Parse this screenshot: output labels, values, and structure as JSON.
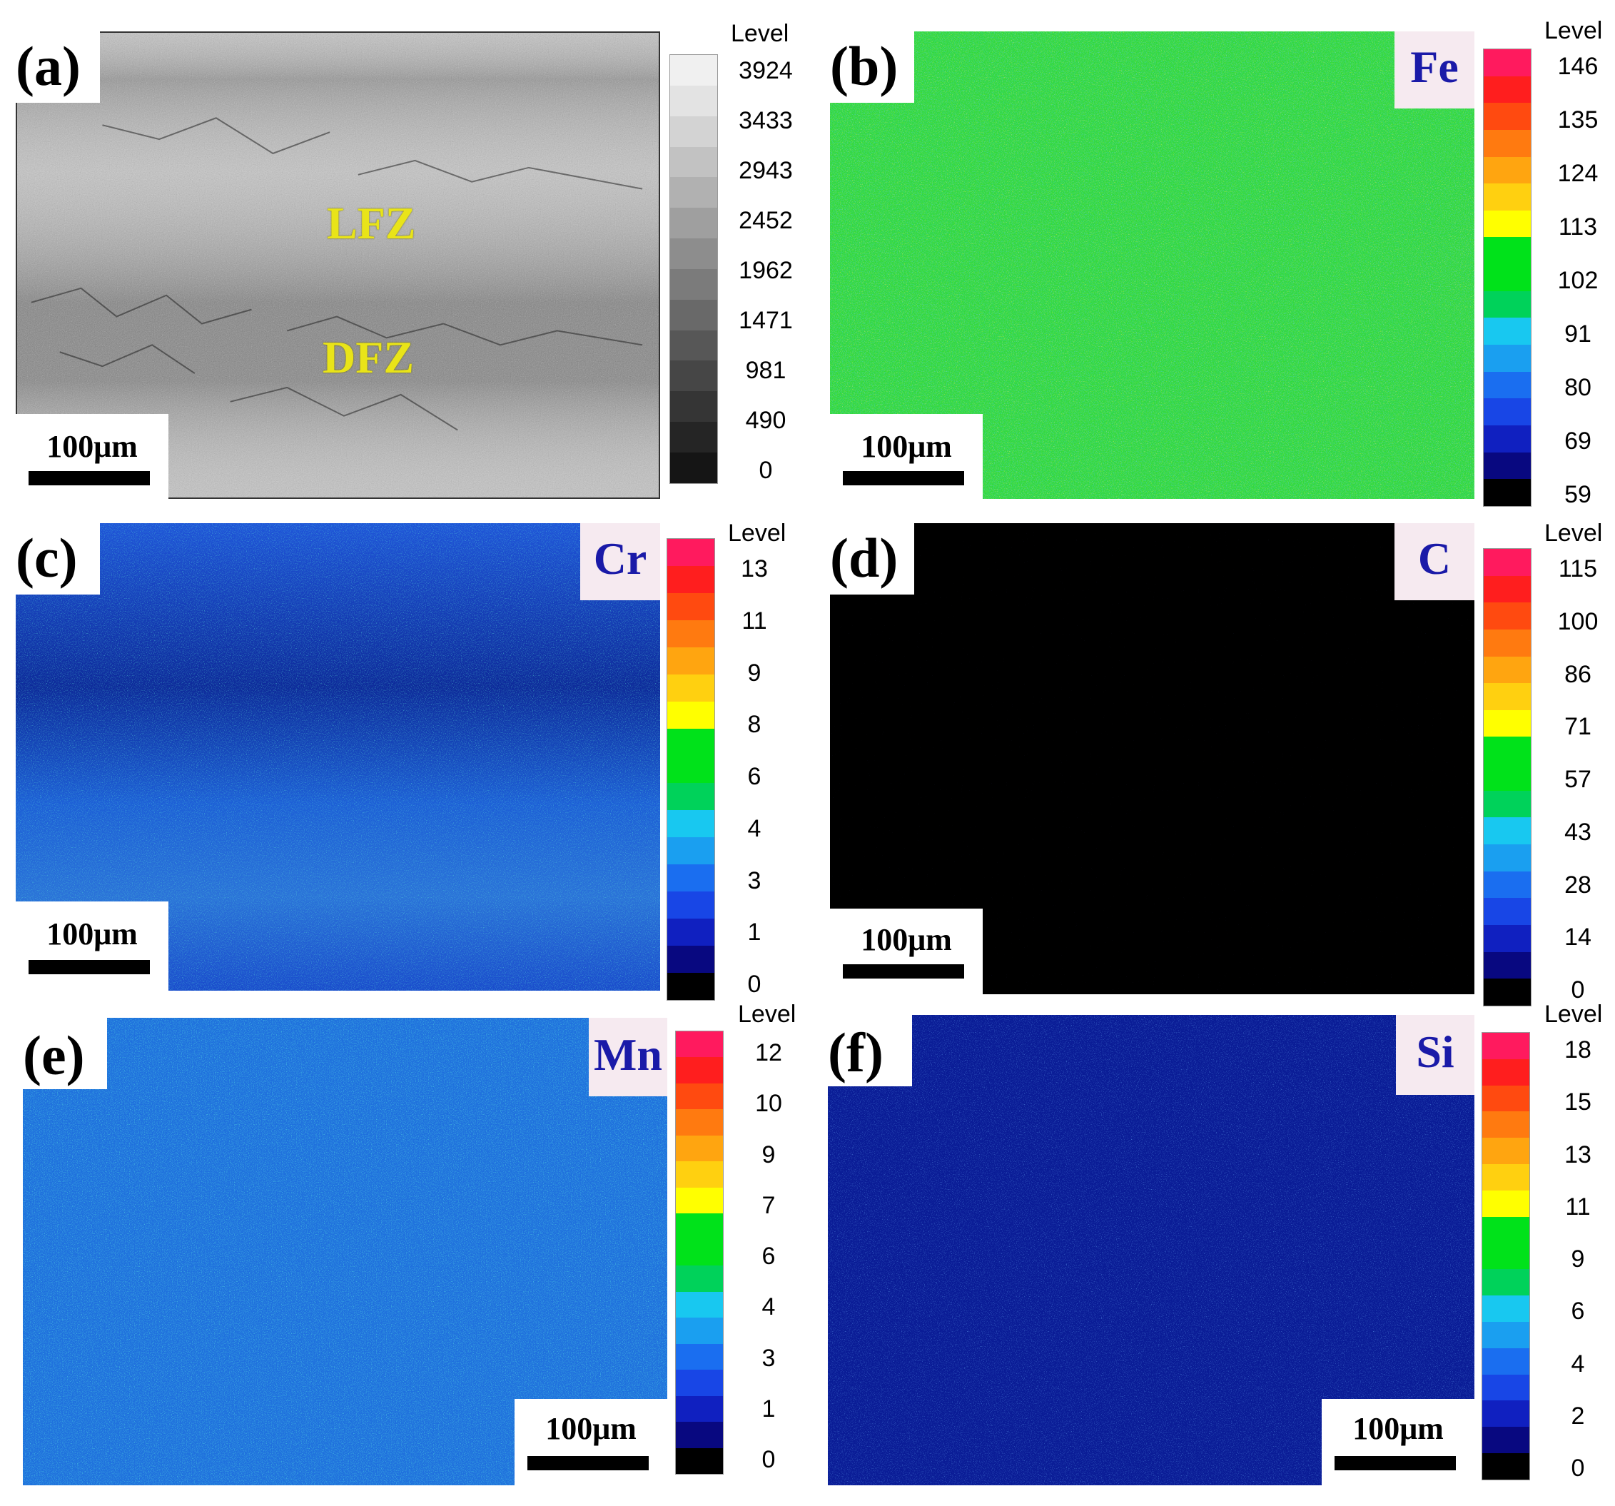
{
  "figure": {
    "panels": [
      {
        "id": "a",
        "label": "(a)",
        "element": "",
        "scale_bar": "100μm",
        "map_style": "grayscale",
        "zones": [
          "LFZ",
          "DFZ"
        ],
        "legend": {
          "title": "Level",
          "ticks": [
            "3924",
            "3433",
            "2943",
            "2452",
            "1962",
            "1471",
            "981",
            "490",
            "0"
          ],
          "colors": [
            "#f0f0f0",
            "#e3e3e3",
            "#d3d3d3",
            "#c2c2c2",
            "#b1b1b1",
            "#9f9f9f",
            "#8d8d8d",
            "#7b7b7b",
            "#696969",
            "#575757",
            "#464646",
            "#353535",
            "#252525",
            "#151515"
          ]
        }
      },
      {
        "id": "b",
        "label": "(b)",
        "element": "Fe",
        "scale_bar": "100μm",
        "map_style": "green-dominant",
        "legend": {
          "title": "Level",
          "ticks": [
            "146",
            "135",
            "124",
            "113",
            "102",
            "91",
            "80",
            "69",
            "59"
          ],
          "colors": [
            "#ff1a5e",
            "#ff1e1e",
            "#ff4a10",
            "#ff7a10",
            "#ffa510",
            "#ffd010",
            "#ffff00",
            "#00e21a",
            "#00e21a",
            "#00d25a",
            "#18c8f0",
            "#1a9ff0",
            "#1a6ef0",
            "#1846e6",
            "#1020c0",
            "#080880",
            "#000000"
          ]
        }
      },
      {
        "id": "c",
        "label": "(c)",
        "element": "Cr",
        "scale_bar": "100μm",
        "map_style": "blue-dominant",
        "legend": {
          "title": "Level",
          "ticks": [
            "13",
            "11",
            "9",
            "8",
            "6",
            "4",
            "3",
            "1",
            "0"
          ],
          "colors": [
            "#ff1a5e",
            "#ff1e1e",
            "#ff4a10",
            "#ff7a10",
            "#ffa510",
            "#ffd010",
            "#ffff00",
            "#00e21a",
            "#00e21a",
            "#00d25a",
            "#18c8f0",
            "#1a9ff0",
            "#1a6ef0",
            "#1846e6",
            "#1020c0",
            "#080880",
            "#000000"
          ]
        }
      },
      {
        "id": "d",
        "label": "(d)",
        "element": "C",
        "scale_bar": "100μm",
        "map_style": "black-sparse",
        "legend": {
          "title": "Level",
          "ticks": [
            "115",
            "100",
            "86",
            "71",
            "57",
            "43",
            "28",
            "14",
            "0"
          ],
          "colors": [
            "#ff1a5e",
            "#ff1e1e",
            "#ff4a10",
            "#ff7a10",
            "#ffa510",
            "#ffd010",
            "#ffff00",
            "#00e21a",
            "#00e21a",
            "#00d25a",
            "#18c8f0",
            "#1a9ff0",
            "#1a6ef0",
            "#1846e6",
            "#1020c0",
            "#080880",
            "#000000"
          ]
        }
      },
      {
        "id": "e",
        "label": "(e)",
        "element": "Mn",
        "scale_bar": "100μm",
        "map_style": "blue-cyan",
        "legend": {
          "title": "Level",
          "ticks": [
            "12",
            "10",
            "9",
            "7",
            "6",
            "4",
            "3",
            "1",
            "0"
          ],
          "colors": [
            "#ff1a5e",
            "#ff1e1e",
            "#ff4a10",
            "#ff7a10",
            "#ffa510",
            "#ffd010",
            "#ffff00",
            "#00e21a",
            "#00e21a",
            "#00d25a",
            "#18c8f0",
            "#1a9ff0",
            "#1a6ef0",
            "#1846e6",
            "#1020c0",
            "#080880",
            "#000000"
          ]
        }
      },
      {
        "id": "f",
        "label": "(f)",
        "element": "Si",
        "scale_bar": "100μm",
        "map_style": "dark-blue",
        "legend": {
          "title": "Level",
          "ticks": [
            "18",
            "15",
            "13",
            "11",
            "9",
            "6",
            "4",
            "2",
            "0"
          ],
          "colors": [
            "#ff1a5e",
            "#ff1e1e",
            "#ff4a10",
            "#ff7a10",
            "#ffa510",
            "#ffd010",
            "#ffff00",
            "#00e21a",
            "#00e21a",
            "#00d25a",
            "#18c8f0",
            "#1a9ff0",
            "#1a6ef0",
            "#1846e6",
            "#1020c0",
            "#080880",
            "#000000"
          ]
        }
      }
    ]
  }
}
